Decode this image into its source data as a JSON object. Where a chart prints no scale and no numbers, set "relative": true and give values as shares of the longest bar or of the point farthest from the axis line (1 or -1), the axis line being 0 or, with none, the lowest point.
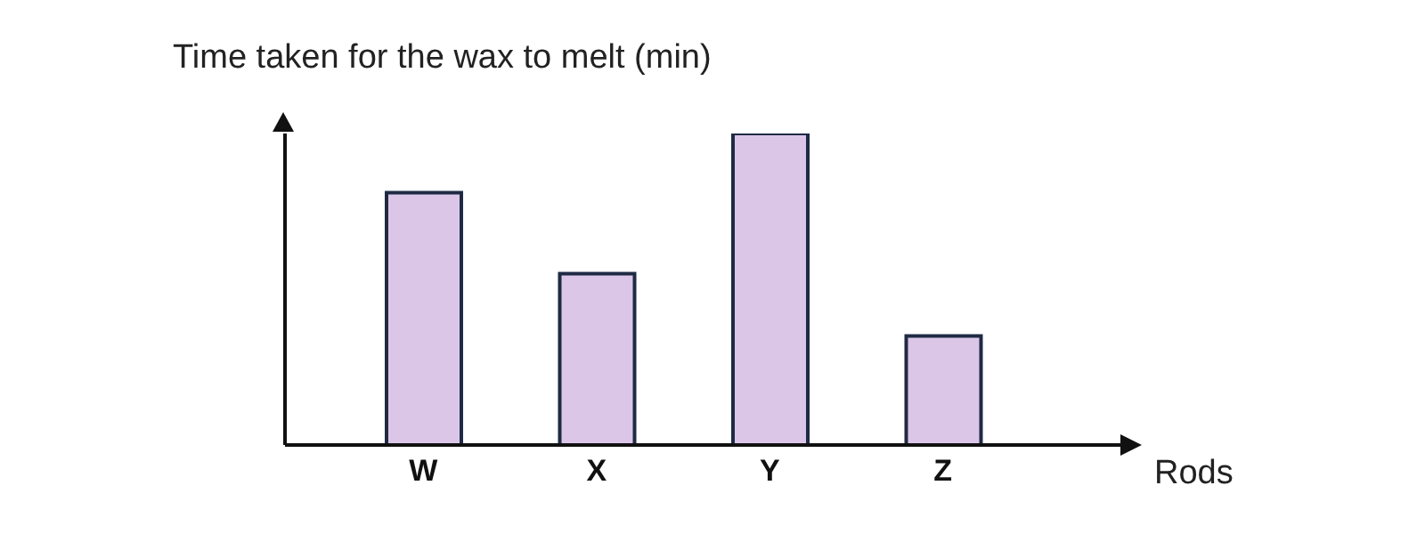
{
  "chart_data": {
    "type": "bar",
    "title": "Time taken for the wax to melt (min)",
    "xlabel": "Rods",
    "categories": [
      "W",
      "X",
      "Y",
      "Z"
    ],
    "values": [
      0.81,
      0.55,
      1,
      0.35
    ],
    "relative": true,
    "color": "#dcc6e8",
    "grid": false,
    "legend": false
  }
}
